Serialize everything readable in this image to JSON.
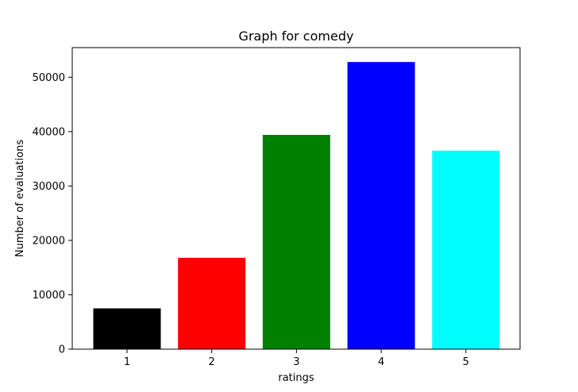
{
  "chart_data": {
    "type": "bar",
    "title": "Graph for comedy",
    "xlabel": "ratings",
    "ylabel": "Number of evaluations",
    "categories": [
      "1",
      "2",
      "3",
      "4",
      "5"
    ],
    "values": [
      7500,
      16800,
      39400,
      52800,
      36500
    ],
    "colors": [
      "#000000",
      "#ff0000",
      "#008000",
      "#0000ff",
      "#00ffff"
    ],
    "ylim": [
      0,
      55450
    ],
    "yticks": [
      0,
      10000,
      20000,
      30000,
      40000,
      50000
    ],
    "grid": false,
    "legend": "none"
  }
}
